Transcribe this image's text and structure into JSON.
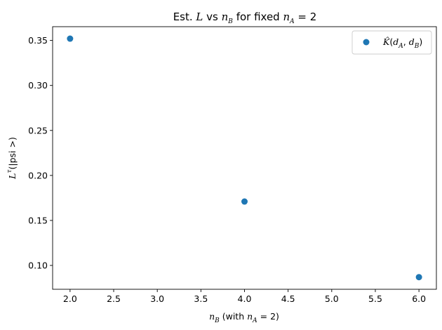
{
  "chart_data": {
    "type": "scatter",
    "title": {
      "prefix": "Est. ",
      "L": "L",
      "vs": " vs ",
      "n": "n",
      "B": "B",
      "mid": " for fixed ",
      "n2": "n",
      "A": "A",
      "eq": " = 2"
    },
    "xlabel": {
      "n": "n",
      "B": "B",
      "rest1": " (with ",
      "n2": "n",
      "A": "A",
      "rest2": " = 2)"
    },
    "ylabel": {
      "L": "L",
      "tau": "τ",
      "rest": "(|psi >)"
    },
    "x": [
      2.0,
      4.0,
      6.0
    ],
    "y": [
      0.352,
      0.171,
      0.087
    ],
    "xlim": [
      1.8,
      6.2
    ],
    "ylim": [
      0.0735,
      0.3653
    ],
    "xticks": [
      2.0,
      2.5,
      3.0,
      3.5,
      4.0,
      4.5,
      5.0,
      5.5,
      6.0
    ],
    "xtick_labels": [
      "2.0",
      "2.5",
      "3.0",
      "3.5",
      "4.0",
      "4.5",
      "5.0",
      "5.5",
      "6.0"
    ],
    "yticks": [
      0.1,
      0.15,
      0.2,
      0.25,
      0.3,
      0.35
    ],
    "ytick_labels": [
      "0.10",
      "0.15",
      "0.20",
      "0.25",
      "0.30",
      "0.35"
    ],
    "grid": false,
    "legend_position": "top-right",
    "series": [
      {
        "legend": {
          "K": "K̂",
          "open": "(",
          "d1": "d",
          "A": "A",
          "comma": ", ",
          "d2": "d",
          "B": "B",
          "close": ")"
        },
        "color": "#1f77b4"
      }
    ]
  }
}
